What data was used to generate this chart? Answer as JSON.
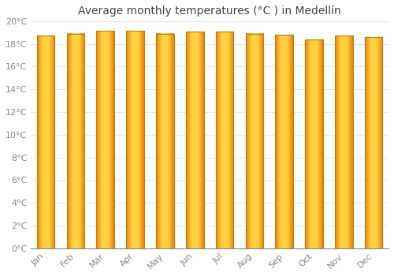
{
  "months": [
    "Jan",
    "Feb",
    "Mar",
    "Apr",
    "May",
    "Jun",
    "Jul",
    "Aug",
    "Sep",
    "Oct",
    "Nov",
    "Dec"
  ],
  "temperatures": [
    18.7,
    18.9,
    19.15,
    19.15,
    18.9,
    19.05,
    19.05,
    18.9,
    18.8,
    18.4,
    18.75,
    18.6
  ],
  "title": "Average monthly temperatures (°C ) in Medellín",
  "ylim": [
    0,
    20
  ],
  "yticks": [
    0,
    2,
    4,
    6,
    8,
    10,
    12,
    14,
    16,
    18,
    20
  ],
  "bar_color": "#FFA500",
  "bar_edge_color": "#CC8800",
  "background_color": "#FFFFFF",
  "plot_bg_color": "#FFFFFF",
  "grid_color": "#DDDDDD",
  "title_fontsize": 10,
  "tick_fontsize": 8,
  "tick_color": "#888888",
  "title_color": "#444444"
}
